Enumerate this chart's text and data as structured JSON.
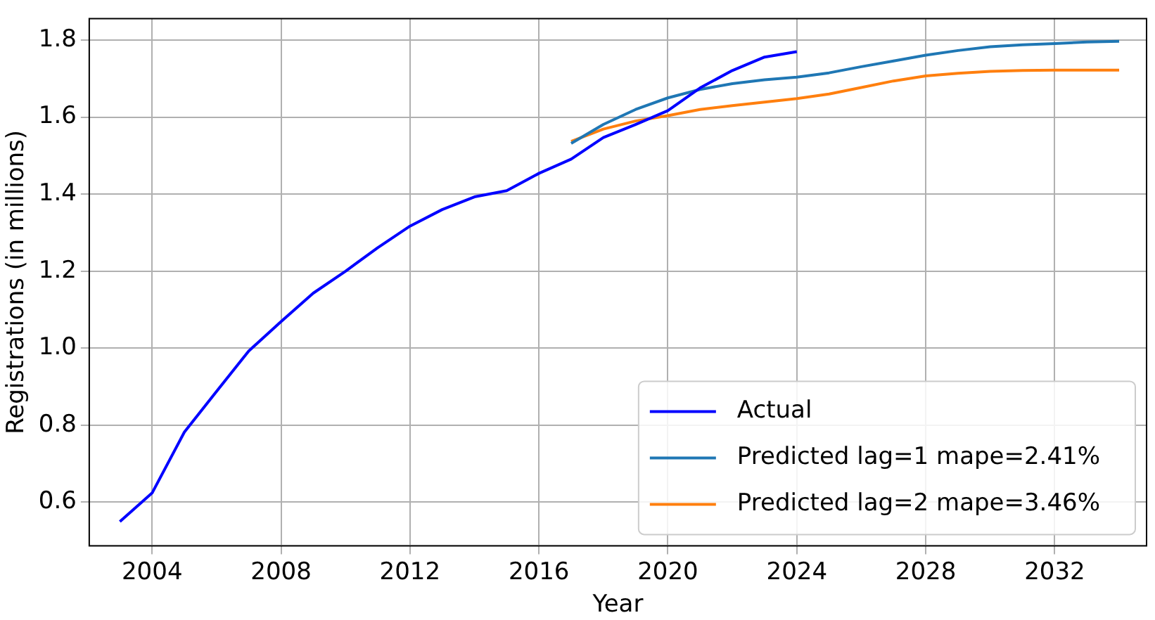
{
  "chart_data": {
    "type": "line",
    "xlabel": "Year",
    "ylabel": "Registrations (in millions)",
    "xlim": [
      2002.05,
      2034.85
    ],
    "ylim": [
      0.487,
      1.856
    ],
    "xticks": [
      2004,
      2008,
      2012,
      2016,
      2020,
      2024,
      2028,
      2032
    ],
    "yticks": [
      {
        "value": 0.6,
        "label": "0.6"
      },
      {
        "value": 0.8,
        "label": "0.8"
      },
      {
        "value": 1,
        "label": "1.0"
      },
      {
        "value": 1.2,
        "label": "1.2"
      },
      {
        "value": 1.4,
        "label": "1.4"
      },
      {
        "value": 1.6,
        "label": "1.6"
      },
      {
        "value": 1.8,
        "label": "1.8"
      }
    ],
    "grid": true,
    "legend": "bottom right",
    "marker": "none",
    "line_style": "solid",
    "series": [
      {
        "name": "Actual",
        "color": "#0000ff",
        "x": [
          2003,
          2004,
          2005,
          2006,
          2007,
          2008,
          2009,
          2010,
          2011,
          2012,
          2013,
          2014,
          2015,
          2016,
          2017,
          2018,
          2019,
          2020,
          2021,
          2022,
          2023,
          2024
        ],
        "values": [
          0.55,
          0.624,
          0.782,
          0.888,
          0.993,
          1.069,
          1.143,
          1.2,
          1.261,
          1.317,
          1.36,
          1.393,
          1.409,
          1.454,
          1.491,
          1.547,
          1.581,
          1.617,
          1.676,
          1.721,
          1.756,
          1.77
        ]
      },
      {
        "name": "Predicted lag=1 mape=2.41%",
        "color": "#1f77b4",
        "x": [
          2017,
          2018,
          2019,
          2020,
          2021,
          2022,
          2023,
          2024,
          2025,
          2026,
          2027,
          2028,
          2029,
          2030,
          2031,
          2032,
          2033,
          2034
        ],
        "values": [
          1.532,
          1.581,
          1.62,
          1.65,
          1.672,
          1.687,
          1.697,
          1.704,
          1.715,
          1.731,
          1.746,
          1.761,
          1.773,
          1.783,
          1.788,
          1.791,
          1.795,
          1.797
        ]
      },
      {
        "name": "Predicted lag=2 mape=3.46%",
        "color": "#ff7f0e",
        "x": [
          2017,
          2018,
          2019,
          2020,
          2021,
          2022,
          2023,
          2024,
          2025,
          2026,
          2027,
          2028,
          2029,
          2030,
          2031,
          2032,
          2033,
          2034
        ],
        "values": [
          1.537,
          1.569,
          1.59,
          1.604,
          1.62,
          1.63,
          1.639,
          1.648,
          1.66,
          1.677,
          1.694,
          1.707,
          1.714,
          1.719,
          1.721,
          1.722,
          1.722,
          1.722
        ]
      }
    ]
  }
}
